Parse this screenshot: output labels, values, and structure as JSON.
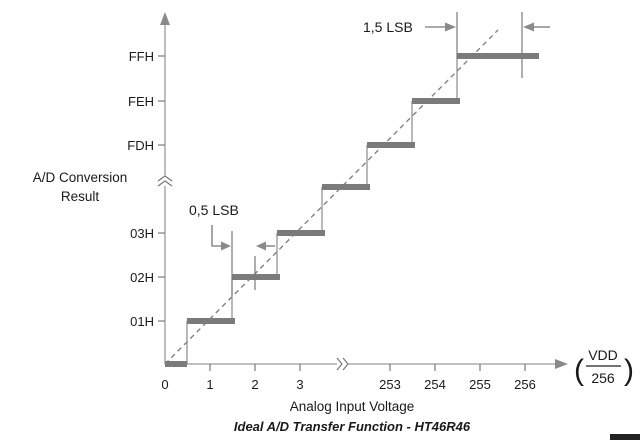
{
  "y_axis": {
    "title_line1": "A/D Conversion",
    "title_line2": "Result",
    "ticks": [
      "FFH",
      "FEH",
      "FDH",
      "03H",
      "02H",
      "01H"
    ]
  },
  "x_axis": {
    "title": "Analog Input Voltage",
    "ticks": [
      "0",
      "1",
      "2",
      "3",
      "253",
      "254",
      "255",
      "256"
    ],
    "unit_numerator": "VDD",
    "unit_denominator": "256",
    "unit_paren_left": "(",
    "unit_paren_right": ")"
  },
  "annotations": {
    "half_lsb": "0,5 LSB",
    "one_half_lsb": "1,5 LSB"
  },
  "caption": "Ideal A/D Transfer Function - HT46R46",
  "chart_data": {
    "type": "line",
    "title": "Ideal A/D Transfer Function - HT46R46",
    "xlabel": "Analog Input Voltage",
    "ylabel": "A/D Conversion Result",
    "x_unit": "VDD/256",
    "x_ticks": [
      "0",
      "1",
      "2",
      "3",
      "253",
      "254",
      "255",
      "256"
    ],
    "y_ticks": [
      "01H",
      "02H",
      "03H",
      "FDH",
      "FEH",
      "FFH"
    ],
    "series": [
      {
        "name": "",
        "style": "step",
        "points": [
          {
            "x_from": 0,
            "x_to": 0.5,
            "y": "00H"
          },
          {
            "x_from": 0.5,
            "x_to": 1.5,
            "y": "01H"
          },
          {
            "x_from": 1.5,
            "x_to": 2.5,
            "y": "02H"
          },
          {
            "x_from": 2.5,
            "x_to": 3.5,
            "y": "03H"
          },
          {
            "x_from": 252.5,
            "x_to": 253.5,
            "y": "FDH"
          },
          {
            "x_from": 253.5,
            "x_to": 254.5,
            "y": "FEH"
          },
          {
            "x_from": 254.5,
            "x_to": 256.3,
            "y": "FFH"
          }
        ]
      },
      {
        "name": "",
        "style": "dashed",
        "points": [
          {
            "x": 0,
            "y": 0
          },
          {
            "x": 256,
            "y": 256
          }
        ]
      }
    ],
    "annotations": [
      "0,5 LSB",
      "1,5 LSB"
    ],
    "axis_breaks": [
      "x",
      "y"
    ]
  }
}
